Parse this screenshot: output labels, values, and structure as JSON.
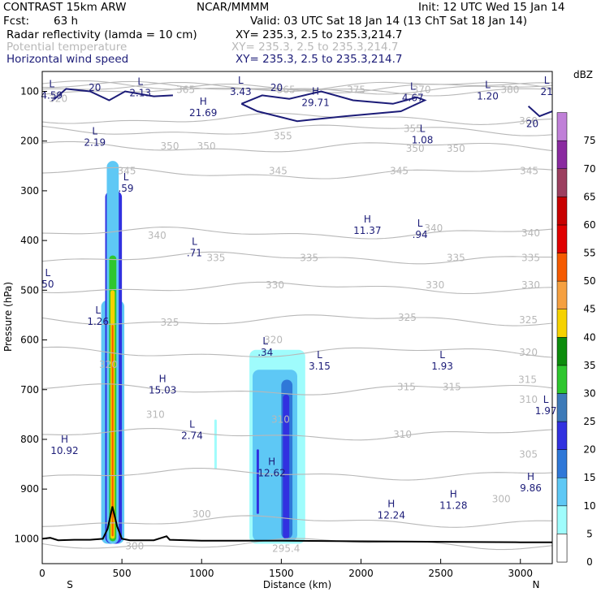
{
  "header": {
    "model": "CONTRAST 15km ARW",
    "org": "NCAR/MMMM",
    "init": "Init: 12 UTC Wed 15 Jan 14",
    "fcst_label": "Fcst:",
    "fcst_value": "63 h",
    "valid": "Valid: 03 UTC Sat 18 Jan 14 (13 ChT Sat 18 Jan 14)",
    "fields": [
      {
        "name": "Radar reflectivity (lamda = 10 cm)",
        "xy": "XY= 235.3,  2.5 to 235.3,214.7",
        "color": "#000000"
      },
      {
        "name": "Potential temperature",
        "xy": "XY= 235.3,  2.5 to 235.3,214.7",
        "color": "#b8b8b8"
      },
      {
        "name": "Horizontal wind speed",
        "xy": "XY= 235.3,  2.5 to 235.3,214.7",
        "color": "#1c1c78"
      }
    ]
  },
  "chart_data": {
    "type": "cross-section",
    "xlabel": "Distance (km)",
    "ylabel": "Pressure (hPa)",
    "xlim": [
      0,
      3200
    ],
    "ylim": [
      1050,
      60
    ],
    "x_ticks": [
      0,
      500,
      1000,
      1500,
      2000,
      2500,
      3000
    ],
    "y_ticks": [
      100,
      200,
      300,
      400,
      500,
      600,
      700,
      800,
      900,
      1000
    ],
    "x_end_labels": {
      "left": "S",
      "right": "N"
    },
    "colorbar": {
      "unit": "dBZ",
      "levels": [
        0,
        5,
        10,
        15,
        20,
        25,
        30,
        35,
        40,
        45,
        50,
        55,
        60,
        65,
        70,
        75
      ],
      "colors": [
        "#ffffff",
        "#9ffcfc",
        "#5ec8f5",
        "#2f78d8",
        "#3131e0",
        "#3d7ab8",
        "#2ec62e",
        "#0c8c0c",
        "#f5d200",
        "#f5a040",
        "#f55a00",
        "#e00000",
        "#c80000",
        "#9c3f5f",
        "#8a2aa0",
        "#c080d8"
      ]
    },
    "theta_contours": {
      "color": "#b8b8b8",
      "levels": [
        295.4,
        300,
        305,
        310,
        315,
        320,
        325,
        330,
        335,
        340,
        345,
        350,
        355,
        360,
        365,
        370,
        375,
        380
      ],
      "labels": [
        {
          "x": 1000,
          "p": 950,
          "text": "300"
        },
        {
          "x": 100,
          "p": 115,
          "text": "320"
        },
        {
          "x": 415,
          "p": 650,
          "text": "320"
        },
        {
          "x": 1090,
          "p": 435,
          "text": "335"
        },
        {
          "x": 1675,
          "p": 435,
          "text": "335"
        },
        {
          "x": 2595,
          "p": 435,
          "text": "335"
        },
        {
          "x": 3065,
          "p": 435,
          "text": "335"
        },
        {
          "x": 720,
          "p": 390,
          "text": "340"
        },
        {
          "x": 2455,
          "p": 375,
          "text": "340"
        },
        {
          "x": 3065,
          "p": 385,
          "text": "340"
        },
        {
          "x": 2880,
          "p": 920,
          "text": "300"
        },
        {
          "x": 530,
          "p": 260,
          "text": "345"
        },
        {
          "x": 1480,
          "p": 260,
          "text": "345"
        },
        {
          "x": 2240,
          "p": 260,
          "text": "345"
        },
        {
          "x": 3055,
          "p": 260,
          "text": "345"
        },
        {
          "x": 800,
          "p": 210,
          "text": "350"
        },
        {
          "x": 1030,
          "p": 210,
          "text": "350"
        },
        {
          "x": 2340,
          "p": 215,
          "text": "350"
        },
        {
          "x": 2595,
          "p": 215,
          "text": "350"
        },
        {
          "x": 1510,
          "p": 190,
          "text": "355"
        },
        {
          "x": 2325,
          "p": 175,
          "text": "355"
        },
        {
          "x": 3050,
          "p": 160,
          "text": "360"
        },
        {
          "x": 1530,
          "p": 97,
          "text": "365"
        },
        {
          "x": 900,
          "p": 97,
          "text": "365"
        },
        {
          "x": 2380,
          "p": 97,
          "text": "370"
        },
        {
          "x": 1970,
          "p": 97,
          "text": "375"
        },
        {
          "x": 2935,
          "p": 97,
          "text": "380"
        },
        {
          "x": 1460,
          "p": 490,
          "text": "330"
        },
        {
          "x": 2465,
          "p": 490,
          "text": "330"
        },
        {
          "x": 3065,
          "p": 490,
          "text": "330"
        },
        {
          "x": 2290,
          "p": 555,
          "text": "325"
        },
        {
          "x": 3050,
          "p": 560,
          "text": "325"
        },
        {
          "x": 3050,
          "p": 625,
          "text": "320"
        },
        {
          "x": 2285,
          "p": 695,
          "text": "315"
        },
        {
          "x": 2570,
          "p": 695,
          "text": "315"
        },
        {
          "x": 3045,
          "p": 680,
          "text": "315"
        },
        {
          "x": 800,
          "p": 565,
          "text": "325"
        },
        {
          "x": 1450,
          "p": 600,
          "text": "320"
        },
        {
          "x": 2260,
          "p": 790,
          "text": "310"
        },
        {
          "x": 3050,
          "p": 720,
          "text": "310"
        },
        {
          "x": 710,
          "p": 750,
          "text": "310"
        },
        {
          "x": 3050,
          "p": 830,
          "text": "305"
        },
        {
          "x": 1495,
          "p": 760,
          "text": "310"
        },
        {
          "x": 1530,
          "p": 1020,
          "text": "295.4"
        },
        {
          "x": 580,
          "p": 1015,
          "text": "300"
        }
      ]
    },
    "wind_speed": {
      "color": "#1c1c78",
      "contour_labels": [
        {
          "x": 330,
          "p": 93,
          "text": "20"
        },
        {
          "x": 1470,
          "p": 93,
          "text": "20"
        },
        {
          "x": 3075,
          "p": 165,
          "text": "20"
        }
      ],
      "extrema": [
        {
          "type": "L",
          "value": "4.59",
          "x": 60,
          "p": 95
        },
        {
          "type": "L",
          "value": "2.13",
          "x": 615,
          "p": 90
        },
        {
          "type": "L",
          "value": "3.43",
          "x": 1245,
          "p": 88
        },
        {
          "type": "L",
          "value": "21",
          "x": 3165,
          "p": 88
        },
        {
          "type": "H",
          "value": "29.71",
          "x": 1715,
          "p": 110
        },
        {
          "type": "L",
          "value": "4.67",
          "x": 2325,
          "p": 100
        },
        {
          "type": "L",
          "value": "1.20",
          "x": 2795,
          "p": 97
        },
        {
          "type": "H",
          "value": "21.69",
          "x": 1010,
          "p": 130
        },
        {
          "type": "L",
          "value": "2.19",
          "x": 330,
          "p": 190
        },
        {
          "type": "L",
          "value": "1.08",
          "x": 2385,
          "p": 185
        },
        {
          "type": "L",
          "value": ".59",
          "x": 525,
          "p": 282
        },
        {
          "type": "H",
          "value": "11.37",
          "x": 2040,
          "p": 367
        },
        {
          "type": "L",
          "value": ".94",
          "x": 2370,
          "p": 375
        },
        {
          "type": "L",
          "value": ".71",
          "x": 955,
          "p": 412
        },
        {
          "type": "L",
          "value": "50",
          "x": 35,
          "p": 475
        },
        {
          "type": "L",
          "value": "1.26",
          "x": 350,
          "p": 550
        },
        {
          "type": "L",
          "value": ".34",
          "x": 1400,
          "p": 612
        },
        {
          "type": "L",
          "value": "3.15",
          "x": 1740,
          "p": 640
        },
        {
          "type": "L",
          "value": "1.93",
          "x": 2510,
          "p": 640
        },
        {
          "type": "H",
          "value": "15.03",
          "x": 755,
          "p": 688
        },
        {
          "type": "L",
          "value": "1.97",
          "x": 3160,
          "p": 730
        },
        {
          "type": "L",
          "value": "2.74",
          "x": 940,
          "p": 780
        },
        {
          "type": "H",
          "value": "10.92",
          "x": 140,
          "p": 810
        },
        {
          "type": "H",
          "value": "12.62",
          "x": 1440,
          "p": 855
        },
        {
          "type": "H",
          "value": "9.86",
          "x": 3065,
          "p": 885
        },
        {
          "type": "H",
          "value": "11.28",
          "x": 2580,
          "p": 920
        },
        {
          "type": "H",
          "value": "12.24",
          "x": 2190,
          "p": 940
        }
      ]
    },
    "terrain": {
      "color": "#000000",
      "x": [
        0,
        50,
        100,
        200,
        300,
        380,
        410,
        440,
        470,
        500,
        550,
        700,
        780,
        800,
        1000,
        1500,
        2000,
        2500,
        3000,
        3200
      ],
      "p": [
        1000,
        998,
        1003,
        1002,
        1002,
        1000,
        980,
        935,
        975,
        1000,
        1003,
        1003,
        995,
        1002,
        1004,
        1004,
        1005,
        1006,
        1007,
        1007
      ]
    },
    "reflectivity_cells": [
      {
        "x0": 370,
        "x1": 515,
        "p_top": 520,
        "p_bot": 1010,
        "dbz": 10
      },
      {
        "x0": 395,
        "x1": 500,
        "p_top": 300,
        "p_bot": 1010,
        "dbz": 20
      },
      {
        "x0": 405,
        "x1": 480,
        "p_top": 240,
        "p_bot": 1010,
        "dbz": 10
      },
      {
        "x0": 420,
        "x1": 465,
        "p_top": 430,
        "p_bot": 1005,
        "dbz": 30
      },
      {
        "x0": 428,
        "x1": 455,
        "p_top": 500,
        "p_bot": 1000,
        "dbz": 40
      },
      {
        "x0": 436,
        "x1": 447,
        "p_top": 570,
        "p_bot": 995,
        "dbz": 50
      },
      {
        "x0": 1080,
        "x1": 1095,
        "p_top": 760,
        "p_bot": 860,
        "dbz": 5
      },
      {
        "x0": 1300,
        "x1": 1650,
        "p_top": 620,
        "p_bot": 1010,
        "dbz": 5
      },
      {
        "x0": 1320,
        "x1": 1600,
        "p_top": 660,
        "p_bot": 1005,
        "dbz": 10
      },
      {
        "x0": 1500,
        "x1": 1570,
        "p_top": 680,
        "p_bot": 1000,
        "dbz": 15
      },
      {
        "x0": 1510,
        "x1": 1550,
        "p_top": 710,
        "p_bot": 1000,
        "dbz": 20
      },
      {
        "x0": 1345,
        "x1": 1360,
        "p_top": 820,
        "p_bot": 950,
        "dbz": 20
      }
    ]
  }
}
